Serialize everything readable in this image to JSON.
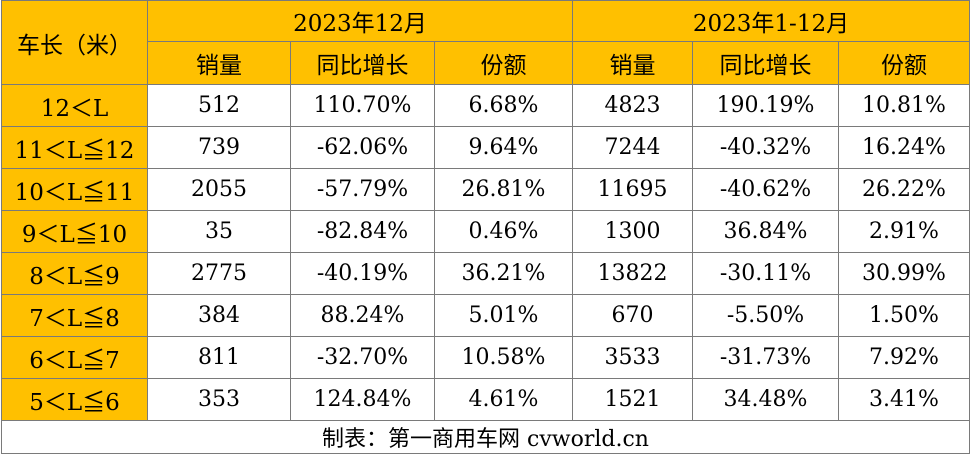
{
  "table": {
    "corner_label": "车长（米）",
    "groups": [
      "2023年12月",
      "2023年1-12月"
    ],
    "subheaders": [
      "销量",
      "同比增长",
      "份额",
      "销量",
      "同比增长",
      "份额"
    ],
    "rows": [
      {
        "label": "12＜L",
        "cells": [
          "512",
          "110.70%",
          "6.68%",
          "4823",
          "190.19%",
          "10.81%"
        ]
      },
      {
        "label": "11＜L≦12",
        "cells": [
          "739",
          "-62.06%",
          "9.64%",
          "7244",
          "-40.32%",
          "16.24%"
        ]
      },
      {
        "label": "10＜L≦11",
        "cells": [
          "2055",
          "-57.79%",
          "26.81%",
          "11695",
          "-40.62%",
          "26.22%"
        ]
      },
      {
        "label": "9＜L≦10",
        "cells": [
          "35",
          "-82.84%",
          "0.46%",
          "1300",
          "36.84%",
          "2.91%"
        ]
      },
      {
        "label": "8＜L≦9",
        "cells": [
          "2775",
          "-40.19%",
          "36.21%",
          "13822",
          "-30.11%",
          "30.99%"
        ]
      },
      {
        "label": "7＜L≦8",
        "cells": [
          "384",
          "88.24%",
          "5.01%",
          "670",
          "-5.50%",
          "1.50%"
        ]
      },
      {
        "label": "6＜L≦7",
        "cells": [
          "811",
          "-32.70%",
          "10.58%",
          "3533",
          "-31.73%",
          "7.92%"
        ]
      },
      {
        "label": "5＜L≦6",
        "cells": [
          "353",
          "124.84%",
          "4.61%",
          "1521",
          "34.48%",
          "3.41%"
        ]
      }
    ],
    "footer": "制表：第一商用车网 cvworld.cn"
  },
  "colors": {
    "header_bg": "#ffc000",
    "border": "#7a7a7a",
    "body_bg": "#ffffff"
  }
}
